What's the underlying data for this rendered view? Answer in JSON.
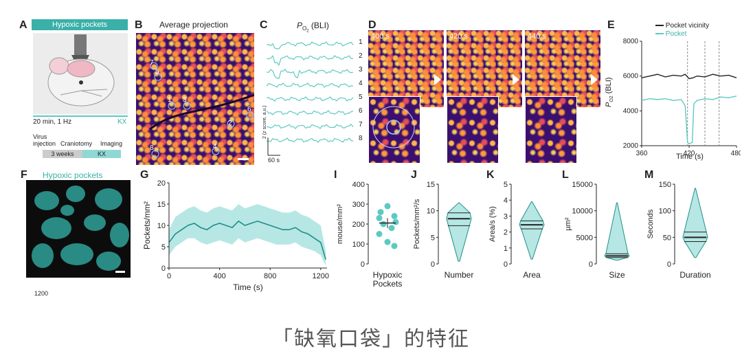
{
  "panels": {
    "A": {
      "letter": "A",
      "banner": "Hypoxic pockets",
      "kx": "KX",
      "timing": "20 min, 1 Hz",
      "kx2": "KX",
      "timeline": {
        "virus": "Virus\ninjection",
        "craniotomy": "Craniotomy",
        "imaging": "Imaging",
        "weeks": "3 weeks",
        "kx": "KX"
      }
    },
    "B": {
      "letter": "B",
      "title": "Average projection",
      "rois": [
        "7",
        "5",
        "1",
        "3",
        "6",
        "2",
        "8",
        "4"
      ]
    },
    "C": {
      "letter": "C",
      "title_main": "P",
      "title_sub": "O",
      "title_sub2": "2",
      "title_rest": " (BLI)",
      "traces": [
        "1",
        "2",
        "3",
        "4",
        "5",
        "6",
        "7",
        "8"
      ],
      "scale_y": "2 (z score, a.u.)",
      "scale_x": "60 s"
    },
    "D": {
      "letter": "D",
      "frames": [
        "400 s",
        "420 s",
        "440 s"
      ]
    },
    "E": {
      "letter": "E",
      "legend": [
        "Pocket vicinity",
        "Pocket"
      ],
      "ylabel": "P",
      "ylabel_sub": "O2",
      "ylabel_rest": " (BLI)",
      "xlabel": "Time (s)"
    },
    "F": {
      "letter": "F",
      "title": "Hypoxic pockets",
      "footer": "1200"
    },
    "G": {
      "letter": "G"
    },
    "I": {
      "letter": "I"
    },
    "J": {
      "letter": "J"
    },
    "K": {
      "letter": "K"
    },
    "L": {
      "letter": "L"
    },
    "M": {
      "letter": "M"
    }
  },
  "caption": "「缺氧口袋」的特征",
  "colors": {
    "teal": "#5ec9c3",
    "tealDark": "#1f8d86",
    "black": "#222222",
    "magma": "#3b0f6f"
  },
  "chart_data": [
    {
      "id": "E",
      "type": "line",
      "xlabel": "Time (s)",
      "ylabel": "PO2 (BLI)",
      "xlim": [
        360,
        480
      ],
      "ylim": [
        2000,
        8000
      ],
      "xticks": [
        360,
        420,
        480
      ],
      "yticks": [
        2000,
        4000,
        6000,
        8000
      ],
      "series": [
        {
          "name": "Pocket vicinity",
          "color": "#222222",
          "x": [
            360,
            370,
            380,
            390,
            400,
            410,
            415,
            420,
            425,
            430,
            440,
            450,
            460,
            470,
            480
          ],
          "y": [
            5900,
            6000,
            6100,
            5950,
            6050,
            6000,
            6100,
            5850,
            5900,
            6000,
            5950,
            6100,
            6000,
            6050,
            5900
          ]
        },
        {
          "name": "Pocket",
          "color": "#5ec9c3",
          "x": [
            360,
            370,
            380,
            390,
            400,
            410,
            415,
            418,
            420,
            424,
            426,
            430,
            440,
            450,
            460,
            470,
            480
          ],
          "y": [
            4600,
            4700,
            4650,
            4700,
            4600,
            4650,
            4300,
            2200,
            2100,
            2200,
            4400,
            4600,
            4700,
            4650,
            4800,
            4750,
            4850
          ]
        }
      ],
      "dashed_x": [
        418,
        440,
        458
      ]
    },
    {
      "id": "G",
      "type": "area",
      "xlabel": "Time (s)",
      "ylabel": "Pockets/mm²",
      "xlim": [
        0,
        1250
      ],
      "ylim": [
        0,
        20
      ],
      "xticks": [
        0,
        400,
        800,
        1200
      ],
      "yticks": [
        0,
        5,
        10,
        15,
        20
      ],
      "x": [
        0,
        50,
        100,
        150,
        200,
        250,
        300,
        350,
        400,
        450,
        500,
        550,
        600,
        650,
        700,
        750,
        800,
        850,
        900,
        950,
        1000,
        1050,
        1100,
        1150,
        1200,
        1240
      ],
      "mean": [
        6,
        8,
        9,
        10,
        10.5,
        9.5,
        9,
        10,
        10.5,
        10,
        9.5,
        11,
        10,
        10.5,
        11,
        10.5,
        10,
        9.5,
        9,
        9,
        9.5,
        8.5,
        8,
        7,
        6,
        2
      ],
      "upper": [
        9,
        12,
        13,
        14,
        14.5,
        13.5,
        13,
        14,
        14.5,
        14,
        13.5,
        15,
        14,
        14.5,
        15,
        14.5,
        14,
        13.5,
        13,
        13,
        13.5,
        12.5,
        12,
        11,
        10,
        4
      ],
      "lower": [
        3,
        5,
        6,
        7,
        7,
        6,
        5.5,
        6,
        6.5,
        6,
        5.5,
        7,
        6,
        6.5,
        7,
        6.5,
        6,
        5.5,
        5.5,
        5.5,
        6,
        5,
        4.5,
        4,
        3,
        0.5
      ]
    },
    {
      "id": "I",
      "type": "scatter",
      "ylabel": "mouse/mm²",
      "category": "Hypoxic\nPockets",
      "ylim": [
        0,
        400
      ],
      "yticks": [
        0,
        100,
        200,
        300,
        400
      ],
      "values": [
        290,
        260,
        240,
        230,
        210,
        200,
        180,
        150,
        110,
        90
      ],
      "mean": 205,
      "sem_low": 180,
      "sem_high": 230
    },
    {
      "id": "J",
      "type": "violin",
      "ylabel": "Pockets/mm²/s",
      "category": "Number",
      "ylim": [
        0,
        15
      ],
      "yticks": [
        0,
        5,
        10,
        15
      ],
      "median": 8.5,
      "q1": 7.2,
      "q3": 9.6,
      "min": 0.5,
      "max": 11.5
    },
    {
      "id": "K",
      "type": "violin",
      "ylabel": "Area/s (%)",
      "category": "Area",
      "ylim": [
        0,
        5
      ],
      "yticks": [
        0,
        1,
        2,
        3,
        4,
        5
      ],
      "median": 2.45,
      "q1": 2.2,
      "q3": 2.7,
      "min": 0.3,
      "max": 3.9
    },
    {
      "id": "L",
      "type": "violin",
      "ylabel": "µm²",
      "category": "Size",
      "ylim": [
        0,
        15000
      ],
      "yticks": [
        0,
        5000,
        10000,
        15000
      ],
      "median": 1500,
      "q1": 1200,
      "q3": 1900,
      "min": 700,
      "max": 11500
    },
    {
      "id": "M",
      "type": "violin",
      "ylabel": "Seconds",
      "category": "Duration",
      "ylim": [
        0,
        150
      ],
      "yticks": [
        0,
        50,
        100,
        150
      ],
      "median": 50,
      "q1": 42,
      "q3": 60,
      "min": 12,
      "max": 142
    }
  ]
}
